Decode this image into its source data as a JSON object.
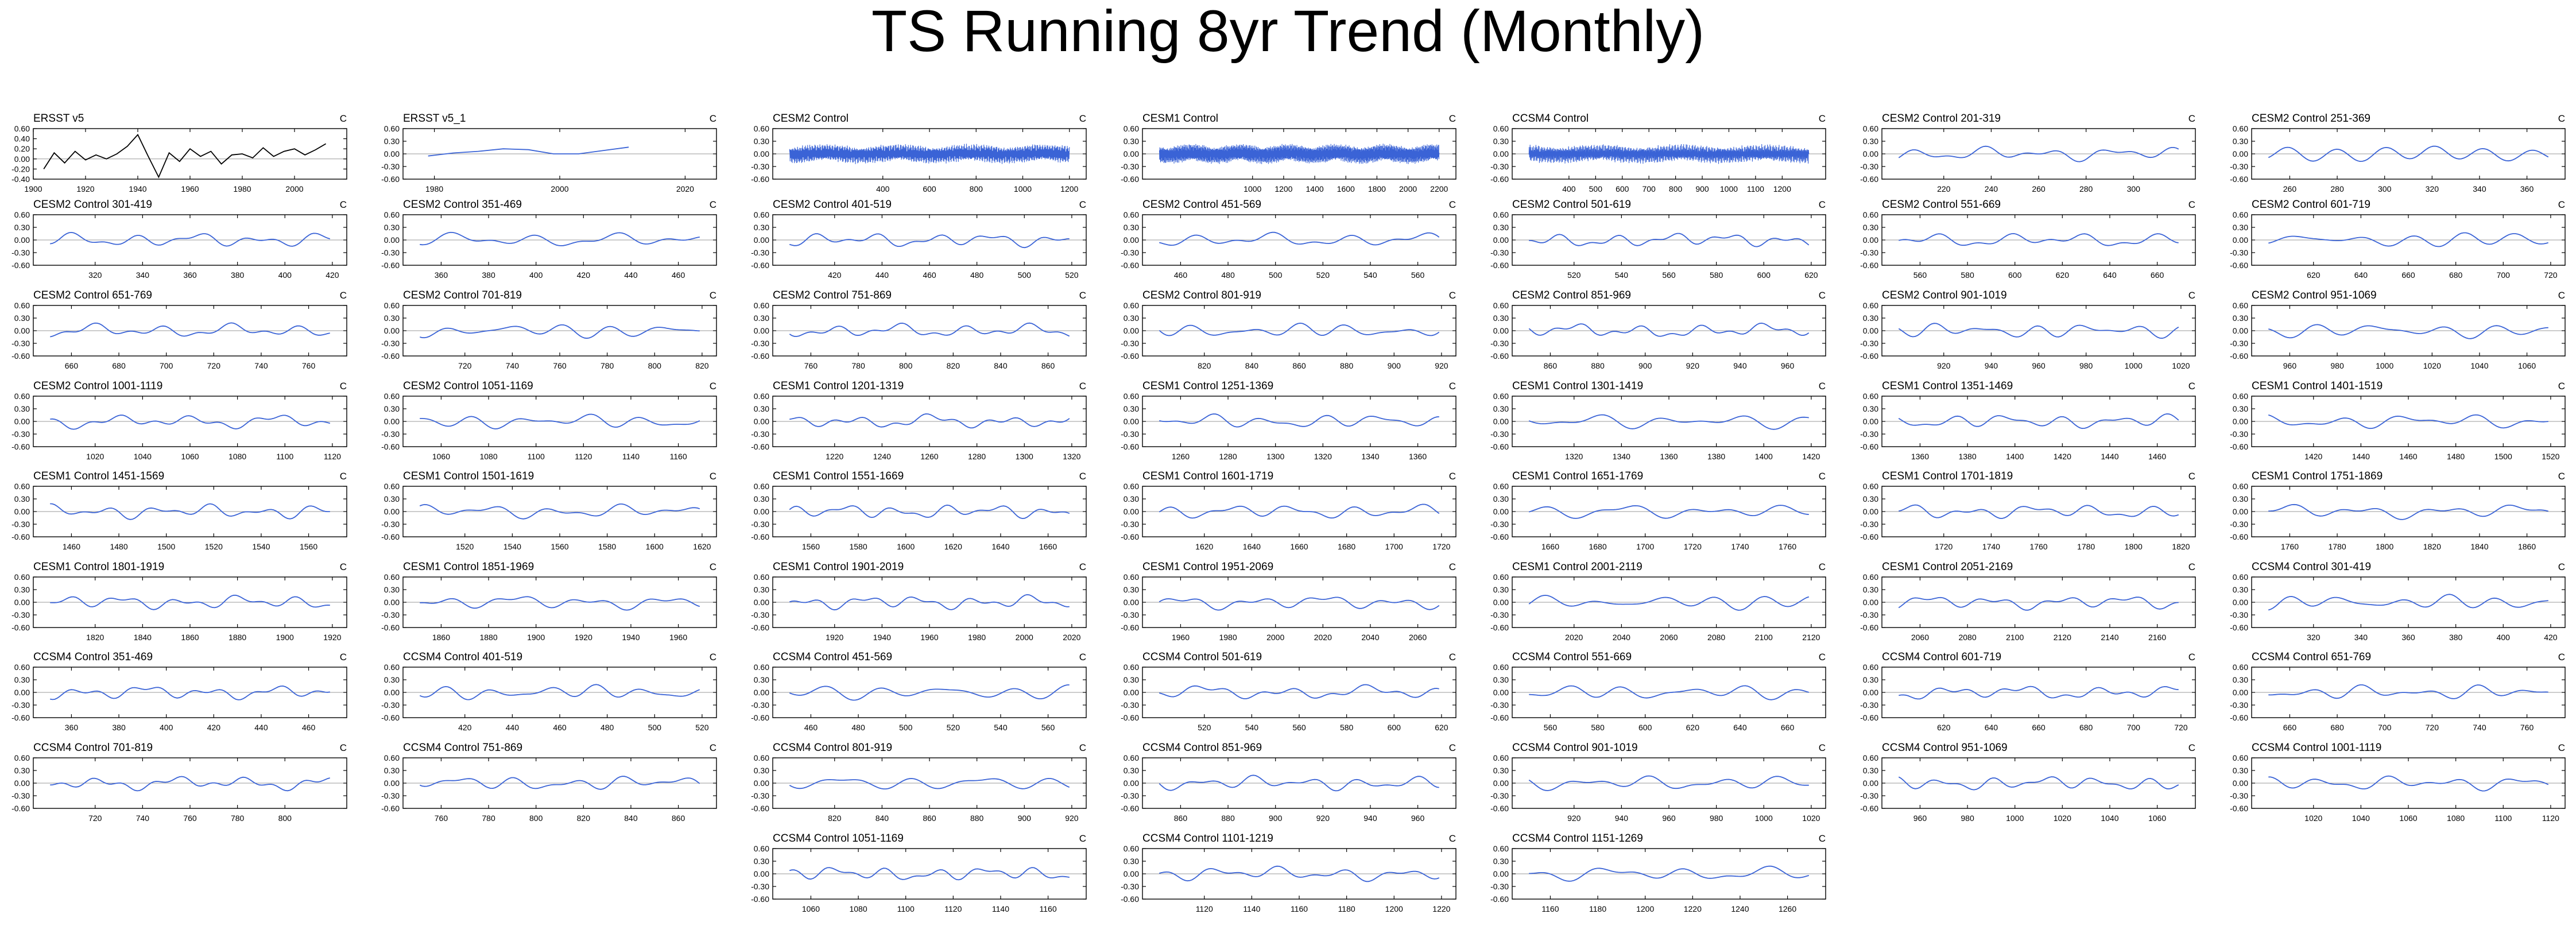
{
  "title": "TS Running 8yr Trend (Monthly)",
  "colors": {
    "observed_line": "#000000",
    "model_line": "#3a63d6",
    "axis": "#000000",
    "zero_line": "#9a9a9a"
  },
  "chart_data": [
    {
      "type": "line",
      "title": "ERSST v5",
      "units": "C",
      "xlim": [
        1900,
        2020
      ],
      "xticks": [
        1900,
        1920,
        1940,
        1960,
        1980,
        2000
      ],
      "ylim": [
        -0.4,
        0.6
      ],
      "yticks": [
        -0.4,
        -0.2,
        0,
        0.2,
        0.4,
        0.6
      ],
      "ytick_labels": [
        "-0.40",
        "-0.20",
        "0.00",
        "0.20",
        "0.40",
        "0.60"
      ],
      "series": [
        {
          "color": "#000000",
          "x": [
            1904,
            1908,
            1912,
            1916,
            1920,
            1924,
            1928,
            1932,
            1936,
            1940,
            1944,
            1948,
            1952,
            1956,
            1960,
            1964,
            1968,
            1972,
            1976,
            1980,
            1984,
            1988,
            1992,
            1996,
            2000,
            2004,
            2008,
            2012
          ],
          "y": [
            -0.2,
            0.12,
            -0.08,
            0.15,
            -0.02,
            0.08,
            0.0,
            0.1,
            0.25,
            0.48,
            0.05,
            -0.36,
            0.12,
            -0.05,
            0.2,
            0.05,
            0.15,
            -0.1,
            0.08,
            0.1,
            0.02,
            0.22,
            0.05,
            0.15,
            0.2,
            0.08,
            0.18,
            0.3
          ]
        }
      ]
    },
    {
      "type": "line",
      "title": "ERSST v5_1",
      "units": "C",
      "xlim": [
        1975,
        2025
      ],
      "xticks": [
        1980,
        2000,
        2020
      ],
      "ylim": [
        -0.6,
        0.6
      ],
      "yticks": [
        -0.6,
        -0.3,
        0,
        0.3,
        0.6
      ],
      "ytick_labels": [
        "-0.60",
        "-0.30",
        "0.00",
        "0.30",
        "0.60"
      ],
      "series": [
        {
          "color": "#3a63d6",
          "x": [
            1979,
            1983,
            1987,
            1991,
            1995,
            1999,
            2003,
            2007,
            2011
          ],
          "y": [
            -0.05,
            0.02,
            0.06,
            0.12,
            0.1,
            0.0,
            0.0,
            0.08,
            0.16
          ]
        }
      ]
    },
    {
      "title": "CESM2 Control",
      "x0": 0,
      "x1": 1200,
      "ticks": [
        400,
        600,
        800,
        1000,
        1200
      ],
      "dense": true
    },
    {
      "title": "CESM1 Control",
      "x0": 400,
      "x1": 2200,
      "ticks": [
        1000,
        1200,
        1400,
        1600,
        1800,
        2000,
        2200
      ],
      "dense": true
    },
    {
      "title": "CCSM4 Control",
      "x0": 250,
      "x1": 1300,
      "ticks": [
        400,
        500,
        600,
        700,
        800,
        900,
        1000,
        1100,
        1200
      ],
      "dense": true
    },
    {
      "title": "CESM2 Control 201-319",
      "x0": 201,
      "x1": 319,
      "ticks": [
        220,
        240,
        260,
        280,
        300
      ]
    },
    {
      "title": "CESM2 Control 251-369",
      "x0": 251,
      "x1": 369,
      "ticks": [
        260,
        280,
        300,
        320,
        340,
        360
      ]
    },
    {
      "title": "CESM2 Control 301-419",
      "x0": 301,
      "x1": 419,
      "ticks": [
        320,
        340,
        360,
        380,
        400,
        420
      ]
    },
    {
      "title": "CESM2 Control 351-469",
      "x0": 351,
      "x1": 469,
      "ticks": [
        360,
        380,
        400,
        420,
        440,
        460
      ]
    },
    {
      "title": "CESM2 Control 401-519",
      "x0": 401,
      "x1": 519,
      "ticks": [
        420,
        440,
        460,
        480,
        500,
        520
      ]
    },
    {
      "title": "CESM2 Control 451-569",
      "x0": 451,
      "x1": 569,
      "ticks": [
        460,
        480,
        500,
        520,
        540,
        560
      ]
    },
    {
      "title": "CESM2 Control 501-619",
      "x0": 501,
      "x1": 619,
      "ticks": [
        520,
        540,
        560,
        580,
        600,
        620
      ]
    },
    {
      "title": "CESM2 Control 551-669",
      "x0": 551,
      "x1": 669,
      "ticks": [
        560,
        580,
        600,
        620,
        640,
        660
      ]
    },
    {
      "title": "CESM2 Control 601-719",
      "x0": 601,
      "x1": 719,
      "ticks": [
        620,
        640,
        660,
        680,
        700,
        720
      ]
    },
    {
      "title": "CESM2 Control 651-769",
      "x0": 651,
      "x1": 769,
      "ticks": [
        660,
        680,
        700,
        720,
        740,
        760
      ]
    },
    {
      "title": "CESM2 Control 701-819",
      "x0": 701,
      "x1": 819,
      "ticks": [
        720,
        740,
        760,
        780,
        800,
        820
      ]
    },
    {
      "title": "CESM2 Control 751-869",
      "x0": 751,
      "x1": 869,
      "ticks": [
        760,
        780,
        800,
        820,
        840,
        860
      ]
    },
    {
      "title": "CESM2 Control 801-919",
      "x0": 801,
      "x1": 919,
      "ticks": [
        820,
        840,
        860,
        880,
        900,
        920
      ]
    },
    {
      "title": "CESM2 Control 851-969",
      "x0": 851,
      "x1": 969,
      "ticks": [
        860,
        880,
        900,
        920,
        940,
        960
      ]
    },
    {
      "title": "CESM2 Control 901-1019",
      "x0": 901,
      "x1": 1019,
      "ticks": [
        920,
        940,
        960,
        980,
        1000,
        1020
      ]
    },
    {
      "title": "CESM2 Control 951-1069",
      "x0": 951,
      "x1": 1069,
      "ticks": [
        960,
        980,
        1000,
        1020,
        1040,
        1060
      ]
    },
    {
      "title": "CESM2 Control 1001-1119",
      "x0": 1001,
      "x1": 1119,
      "ticks": [
        1020,
        1040,
        1060,
        1080,
        1100,
        1120
      ]
    },
    {
      "title": "CESM2 Control 1051-1169",
      "x0": 1051,
      "x1": 1169,
      "ticks": [
        1060,
        1080,
        1100,
        1120,
        1140,
        1160
      ]
    },
    {
      "title": "CESM1 Control 1201-1319",
      "x0": 1201,
      "x1": 1319,
      "ticks": [
        1220,
        1240,
        1260,
        1280,
        1300,
        1320
      ]
    },
    {
      "title": "CESM1 Control 1251-1369",
      "x0": 1251,
      "x1": 1369,
      "ticks": [
        1260,
        1280,
        1300,
        1320,
        1340,
        1360
      ]
    },
    {
      "title": "CESM1 Control 1301-1419",
      "x0": 1301,
      "x1": 1419,
      "ticks": [
        1320,
        1340,
        1360,
        1380,
        1400,
        1420
      ]
    },
    {
      "title": "CESM1 Control 1351-1469",
      "x0": 1351,
      "x1": 1469,
      "ticks": [
        1360,
        1380,
        1400,
        1420,
        1440,
        1460
      ]
    },
    {
      "title": "CESM1 Control 1401-1519",
      "x0": 1401,
      "x1": 1519,
      "ticks": [
        1420,
        1440,
        1460,
        1480,
        1500,
        1520
      ]
    },
    {
      "title": "CESM1 Control 1451-1569",
      "x0": 1451,
      "x1": 1569,
      "ticks": [
        1460,
        1480,
        1500,
        1520,
        1540,
        1560
      ]
    },
    {
      "title": "CESM1 Control 1501-1619",
      "x0": 1501,
      "x1": 1619,
      "ticks": [
        1520,
        1540,
        1560,
        1580,
        1600,
        1620
      ]
    },
    {
      "title": "CESM1 Control 1551-1669",
      "x0": 1551,
      "x1": 1669,
      "ticks": [
        1560,
        1580,
        1600,
        1620,
        1640,
        1660
      ]
    },
    {
      "title": "CESM1 Control 1601-1719",
      "x0": 1601,
      "x1": 1719,
      "ticks": [
        1620,
        1640,
        1660,
        1680,
        1700,
        1720
      ]
    },
    {
      "title": "CESM1 Control 1651-1769",
      "x0": 1651,
      "x1": 1769,
      "ticks": [
        1660,
        1680,
        1700,
        1720,
        1740,
        1760
      ]
    },
    {
      "title": "CESM1 Control 1701-1819",
      "x0": 1701,
      "x1": 1819,
      "ticks": [
        1720,
        1740,
        1760,
        1780,
        1800,
        1820
      ]
    },
    {
      "title": "CESM1 Control 1751-1869",
      "x0": 1751,
      "x1": 1869,
      "ticks": [
        1760,
        1780,
        1800,
        1820,
        1840,
        1860
      ]
    },
    {
      "title": "CESM1 Control 1801-1919",
      "x0": 1801,
      "x1": 1919,
      "ticks": [
        1820,
        1840,
        1860,
        1880,
        1900,
        1920
      ]
    },
    {
      "title": "CESM1 Control 1851-1969",
      "x0": 1851,
      "x1": 1969,
      "ticks": [
        1860,
        1880,
        1900,
        1920,
        1940,
        1960
      ]
    },
    {
      "title": "CESM1 Control 1901-2019",
      "x0": 1901,
      "x1": 2019,
      "ticks": [
        1920,
        1940,
        1960,
        1980,
        2000,
        2020
      ]
    },
    {
      "title": "CESM1 Control 1951-2069",
      "x0": 1951,
      "x1": 2069,
      "ticks": [
        1960,
        1980,
        2000,
        2020,
        2040,
        2060
      ]
    },
    {
      "title": "CESM1 Control 2001-2119",
      "x0": 2001,
      "x1": 2119,
      "ticks": [
        2020,
        2040,
        2060,
        2080,
        2100,
        2120
      ]
    },
    {
      "title": "CESM1 Control 2051-2169",
      "x0": 2051,
      "x1": 2169,
      "ticks": [
        2060,
        2080,
        2100,
        2120,
        2140,
        2160
      ]
    },
    {
      "title": "CCSM4 Control 301-419",
      "x0": 301,
      "x1": 419,
      "ticks": [
        320,
        340,
        360,
        380,
        400,
        420
      ]
    },
    {
      "title": "CCSM4 Control 351-469",
      "x0": 351,
      "x1": 469,
      "ticks": [
        360,
        380,
        400,
        420,
        440,
        460
      ]
    },
    {
      "title": "CCSM4 Control 401-519",
      "x0": 401,
      "x1": 519,
      "ticks": [
        420,
        440,
        460,
        480,
        500,
        520
      ]
    },
    {
      "title": "CCSM4 Control 451-569",
      "x0": 451,
      "x1": 569,
      "ticks": [
        460,
        480,
        500,
        520,
        540,
        560
      ]
    },
    {
      "title": "CCSM4 Control 501-619",
      "x0": 501,
      "x1": 619,
      "ticks": [
        520,
        540,
        560,
        580,
        600,
        620
      ]
    },
    {
      "title": "CCSM4 Control 551-669",
      "x0": 551,
      "x1": 669,
      "ticks": [
        560,
        580,
        600,
        620,
        640,
        660
      ]
    },
    {
      "title": "CCSM4 Control 601-719",
      "x0": 601,
      "x1": 719,
      "ticks": [
        620,
        640,
        660,
        680,
        700,
        720
      ]
    },
    {
      "title": "CCSM4 Control 651-769",
      "x0": 651,
      "x1": 769,
      "ticks": [
        660,
        680,
        700,
        720,
        740,
        760
      ]
    },
    {
      "title": "CCSM4 Control 701-819",
      "x0": 701,
      "x1": 819,
      "ticks": [
        720,
        740,
        760,
        780,
        800
      ]
    },
    {
      "title": "CCSM4 Control 751-869",
      "x0": 751,
      "x1": 869,
      "ticks": [
        760,
        780,
        800,
        820,
        840,
        860
      ]
    },
    {
      "title": "CCSM4 Control 801-919",
      "x0": 801,
      "x1": 919,
      "ticks": [
        820,
        840,
        860,
        880,
        900,
        920
      ]
    },
    {
      "title": "CCSM4 Control 851-969",
      "x0": 851,
      "x1": 969,
      "ticks": [
        860,
        880,
        900,
        920,
        940,
        960
      ]
    },
    {
      "title": "CCSM4 Control 901-1019",
      "x0": 901,
      "x1": 1019,
      "ticks": [
        920,
        940,
        960,
        980,
        1000,
        1020
      ]
    },
    {
      "title": "CCSM4 Control 951-1069",
      "x0": 951,
      "x1": 1069,
      "ticks": [
        960,
        980,
        1000,
        1020,
        1040,
        1060
      ]
    },
    {
      "title": "CCSM4 Control 1001-1119",
      "x0": 1001,
      "x1": 1119,
      "ticks": [
        1020,
        1040,
        1060,
        1080,
        1100,
        1120
      ]
    },
    {
      "title": "CCSM4 Control 1051-1169",
      "x0": 1051,
      "x1": 1169,
      "ticks": [
        1060,
        1080,
        1100,
        1120,
        1140,
        1160
      ]
    },
    {
      "title": "CCSM4 Control 1101-1219",
      "x0": 1101,
      "x1": 1219,
      "ticks": [
        1120,
        1140,
        1160,
        1180,
        1200,
        1220
      ]
    },
    {
      "title": "CCSM4 Control 1151-1269",
      "x0": 1151,
      "x1": 1269,
      "ticks": [
        1160,
        1180,
        1200,
        1220,
        1240,
        1260
      ]
    }
  ]
}
